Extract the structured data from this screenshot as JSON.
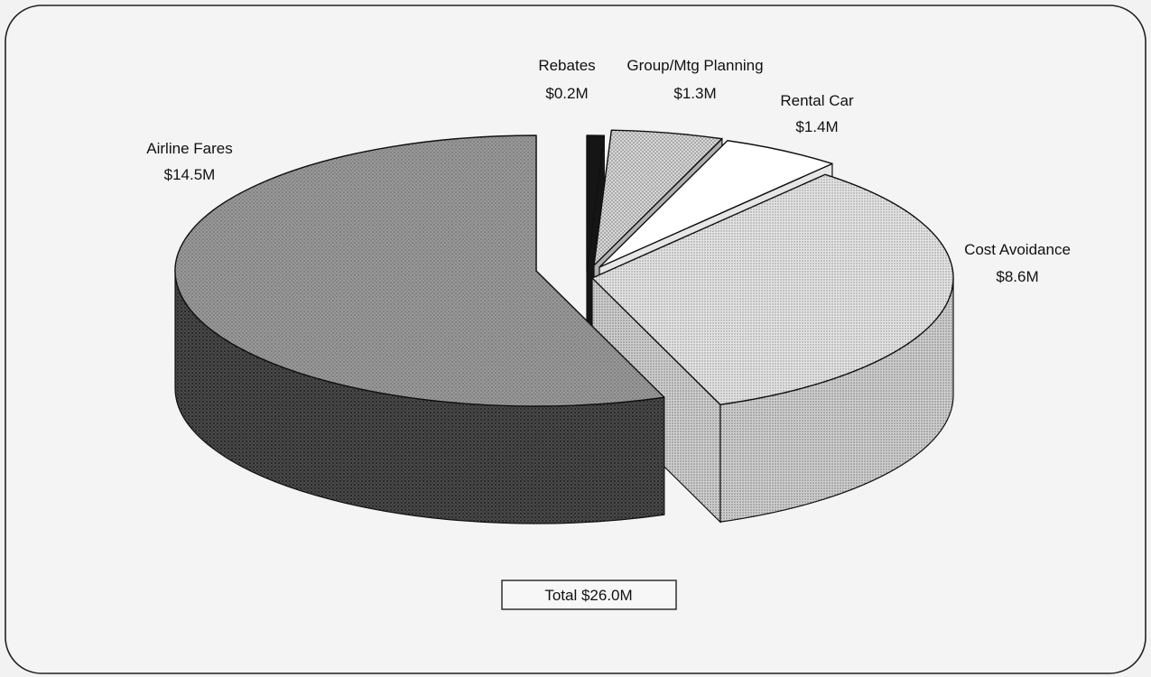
{
  "chart_data": {
    "type": "pie",
    "style": "3d-exploded",
    "slices": [
      {
        "name": "Rebates",
        "value_label": "$0.2M",
        "value": 0.2,
        "unit": "$M"
      },
      {
        "name": "Group/Mtg Planning",
        "value_label": "$1.3M",
        "value": 1.3,
        "unit": "$M"
      },
      {
        "name": "Rental Car",
        "value_label": "$1.4M",
        "value": 1.4,
        "unit": "$M"
      },
      {
        "name": "Cost Avoidance",
        "value_label": "$8.6M",
        "value": 8.6,
        "unit": "$M"
      },
      {
        "name": "Airline Fares",
        "value_label": "$14.5M",
        "value": 14.5,
        "unit": "$M"
      }
    ],
    "total_label": "Total $26.0M",
    "legend": "none"
  },
  "colors": {
    "background": "#f2f2f2",
    "frame": "#222222",
    "airline_top": "#8f8f8f",
    "airline_side": "#3a3a3a",
    "cost_top": "#d3d3d3",
    "cost_side": "#bdbdbd",
    "rental_top": "#ffffff",
    "group_top": "#c8c8c8",
    "rebates_top": "#151515",
    "separator": "#111111"
  }
}
